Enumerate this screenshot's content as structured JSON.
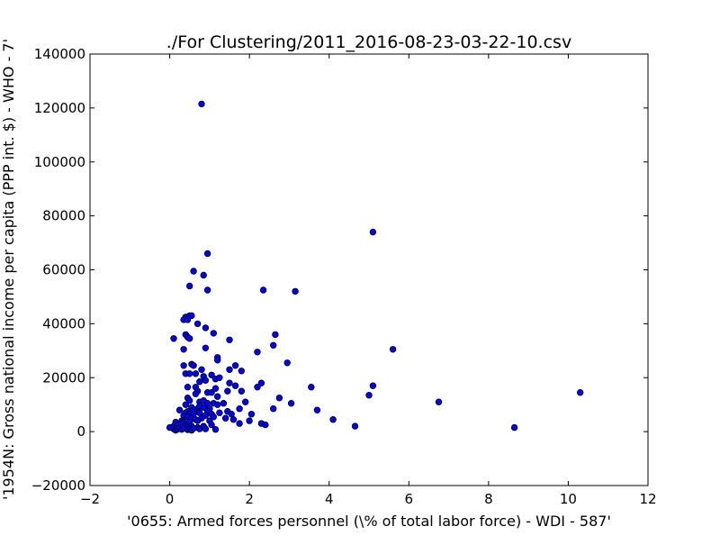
{
  "chart_data": {
    "type": "scatter",
    "title": "./For Clustering/2011_2016-08-23-03-22-10.csv",
    "xlabel": "'0655: Armed forces personnel  (\\% of total labor force) - WDI - 587'",
    "ylabel": "'1954N: Gross national income per capita (PPP int. $) - WHO - 7'",
    "xlim": [
      -2,
      12
    ],
    "ylim": [
      -20000,
      140000
    ],
    "xticks": [
      -2,
      0,
      2,
      4,
      6,
      8,
      10,
      12
    ],
    "xtick_labels": [
      "−2",
      "0",
      "2",
      "4",
      "6",
      "8",
      "10",
      "12"
    ],
    "yticks": [
      -20000,
      0,
      20000,
      40000,
      60000,
      80000,
      100000,
      120000,
      140000
    ],
    "ytick_labels": [
      "−20000",
      "0",
      "20000",
      "40000",
      "60000",
      "80000",
      "100000",
      "120000",
      "140000"
    ],
    "grid": false,
    "marker_color": "#0000ff",
    "marker_edge_color": "#000000",
    "points": [
      [
        0.8,
        121500
      ],
      [
        5.1,
        74000
      ],
      [
        0.95,
        66000
      ],
      [
        0.6,
        59500
      ],
      [
        0.85,
        58000
      ],
      [
        0.5,
        54000
      ],
      [
        0.95,
        52500
      ],
      [
        2.35,
        52500
      ],
      [
        3.15,
        52000
      ],
      [
        0.4,
        42500
      ],
      [
        0.5,
        43000
      ],
      [
        0.55,
        43000
      ],
      [
        0.35,
        41500
      ],
      [
        0.45,
        41500
      ],
      [
        0.7,
        40000
      ],
      [
        0.9,
        38500
      ],
      [
        0.1,
        34500
      ],
      [
        1.1,
        36500
      ],
      [
        0.4,
        36000
      ],
      [
        0.45,
        35000
      ],
      [
        0.5,
        34500
      ],
      [
        1.5,
        34000
      ],
      [
        2.65,
        36000
      ],
      [
        2.6,
        32000
      ],
      [
        0.35,
        30500
      ],
      [
        0.9,
        31000
      ],
      [
        5.6,
        30500
      ],
      [
        2.2,
        29500
      ],
      [
        1.2,
        27500
      ],
      [
        1.2,
        26500
      ],
      [
        2.95,
        25500
      ],
      [
        0.35,
        24500
      ],
      [
        0.55,
        25000
      ],
      [
        0.6,
        24500
      ],
      [
        1.65,
        24500
      ],
      [
        1.8,
        22500
      ],
      [
        0.8,
        23000
      ],
      [
        1.5,
        23000
      ],
      [
        0.4,
        21500
      ],
      [
        0.5,
        21500
      ],
      [
        0.65,
        21500
      ],
      [
        0.85,
        20500
      ],
      [
        1.05,
        21000
      ],
      [
        1.15,
        19500
      ],
      [
        1.25,
        20000
      ],
      [
        0.9,
        19000
      ],
      [
        0.75,
        18500
      ],
      [
        1.5,
        18000
      ],
      [
        1.65,
        17000
      ],
      [
        2.3,
        18000
      ],
      [
        2.2,
        16500
      ],
      [
        3.55,
        16500
      ],
      [
        5.1,
        17000
      ],
      [
        0.45,
        16500
      ],
      [
        0.65,
        16500
      ],
      [
        0.7,
        15000
      ],
      [
        0.95,
        14500
      ],
      [
        1.05,
        14500
      ],
      [
        1.15,
        16000
      ],
      [
        1.45,
        15000
      ],
      [
        1.8,
        15000
      ],
      [
        0.65,
        14000
      ],
      [
        10.3,
        14500
      ],
      [
        5.0,
        13500
      ],
      [
        1.2,
        13000
      ],
      [
        2.75,
        12500
      ],
      [
        0.45,
        12500
      ],
      [
        0.5,
        11500
      ],
      [
        0.75,
        11000
      ],
      [
        0.85,
        11500
      ],
      [
        0.95,
        10500
      ],
      [
        1.1,
        10500
      ],
      [
        1.2,
        10000
      ],
      [
        1.35,
        10500
      ],
      [
        1.9,
        11000
      ],
      [
        3.05,
        10500
      ],
      [
        6.75,
        11000
      ],
      [
        0.4,
        10000
      ],
      [
        0.55,
        9000
      ],
      [
        0.7,
        8500
      ],
      [
        0.75,
        9500
      ],
      [
        0.85,
        9000
      ],
      [
        1.0,
        8500
      ],
      [
        1.75,
        8500
      ],
      [
        0.25,
        8000
      ],
      [
        0.6,
        8000
      ],
      [
        0.45,
        7500
      ],
      [
        0.95,
        7500
      ],
      [
        1.25,
        7000
      ],
      [
        1.45,
        7500
      ],
      [
        2.6,
        8500
      ],
      [
        3.7,
        8000
      ],
      [
        0.4,
        7000
      ],
      [
        0.5,
        6500
      ],
      [
        0.6,
        6500
      ],
      [
        0.75,
        7000
      ],
      [
        0.9,
        6000
      ],
      [
        1.05,
        6500
      ],
      [
        1.55,
        6500
      ],
      [
        2.05,
        6500
      ],
      [
        0.35,
        6000
      ],
      [
        0.45,
        5500
      ],
      [
        0.55,
        5000
      ],
      [
        0.65,
        4500
      ],
      [
        0.8,
        5000
      ],
      [
        1.1,
        5500
      ],
      [
        1.6,
        4500
      ],
      [
        2.0,
        4000
      ],
      [
        4.1,
        4500
      ],
      [
        0.15,
        3500
      ],
      [
        0.3,
        4000
      ],
      [
        0.35,
        3500
      ],
      [
        0.5,
        3500
      ],
      [
        0.7,
        4000
      ],
      [
        1.0,
        4000
      ],
      [
        1.4,
        5000
      ],
      [
        1.75,
        3000
      ],
      [
        2.3,
        3000
      ],
      [
        2.4,
        2500
      ],
      [
        0.1,
        2000
      ],
      [
        0.2,
        2500
      ],
      [
        0.3,
        3000
      ],
      [
        0.4,
        2000
      ],
      [
        0.55,
        2000
      ],
      [
        0.7,
        1500
      ],
      [
        0.85,
        2000
      ],
      [
        1.05,
        2500
      ],
      [
        4.65,
        2000
      ],
      [
        8.65,
        1500
      ],
      [
        0.0,
        1500
      ],
      [
        0.1,
        1000
      ],
      [
        0.15,
        500
      ],
      [
        0.2,
        1000
      ],
      [
        0.25,
        1500
      ],
      [
        0.3,
        800
      ],
      [
        0.35,
        1200
      ],
      [
        0.45,
        700
      ],
      [
        0.5,
        1000
      ],
      [
        0.55,
        500
      ],
      [
        0.6,
        1200
      ],
      [
        0.75,
        1000
      ],
      [
        0.9,
        1000
      ],
      [
        1.15,
        800
      ]
    ]
  }
}
